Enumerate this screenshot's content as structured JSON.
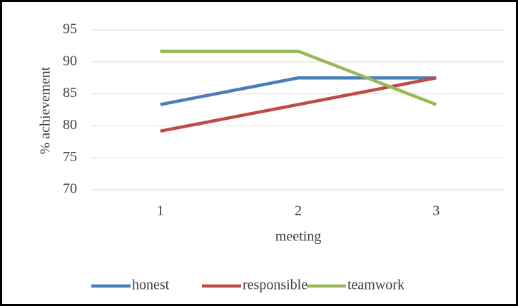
{
  "chart_data": {
    "type": "line",
    "categories": [
      "1",
      "2",
      "3"
    ],
    "x_label": "meeting",
    "y_label": "% achievement",
    "series": [
      {
        "name": "honest",
        "color": "#4a7ebb",
        "values": [
          83.33,
          87.5,
          87.5
        ]
      },
      {
        "name": "responsible",
        "color": "#be4b48",
        "values": [
          79.17,
          83.33,
          87.5
        ]
      },
      {
        "name": "teamwork",
        "color": "#98b954",
        "values": [
          91.67,
          91.67,
          83.33
        ]
      }
    ],
    "ylim": [
      70,
      95
    ],
    "yticks": [
      70,
      75,
      80,
      85,
      90,
      95
    ],
    "grid": true,
    "legend": "bottom"
  }
}
